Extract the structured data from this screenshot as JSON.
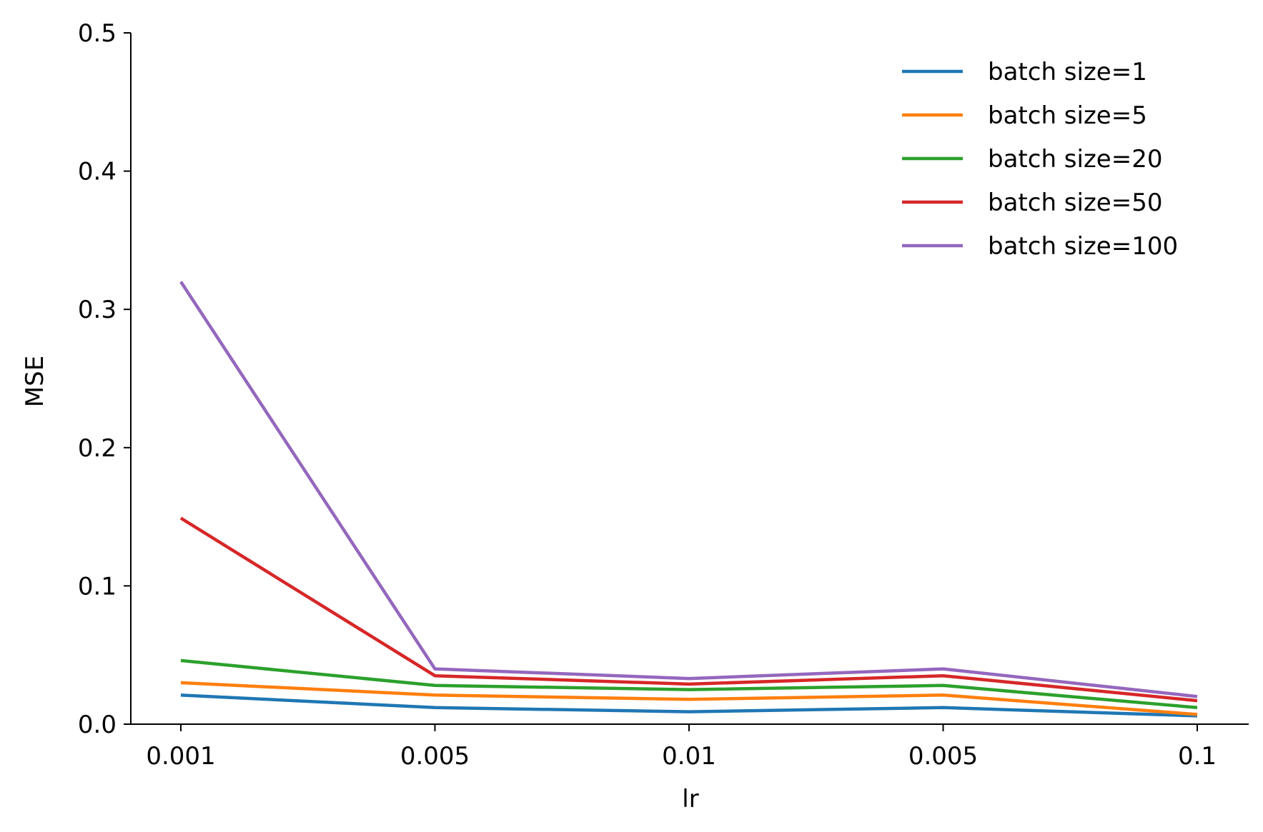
{
  "chart_data": {
    "type": "line",
    "title": "",
    "xlabel": "lr",
    "ylabel": "MSE",
    "categories": [
      "0.001",
      "0.005",
      "0.01",
      "0.005",
      "0.1"
    ],
    "ylim": [
      0,
      0.5
    ],
    "yticks": [
      "0.0",
      "0.1",
      "0.2",
      "0.3",
      "0.4",
      "0.5"
    ],
    "grid": false,
    "legend_position": "top-right",
    "series": [
      {
        "name": "batch size=1",
        "color": "#1f77b4",
        "values": [
          0.021,
          0.012,
          0.009,
          0.012,
          0.006
        ]
      },
      {
        "name": "batch size=5",
        "color": "#ff7f0e",
        "values": [
          0.03,
          0.021,
          0.018,
          0.021,
          0.007
        ]
      },
      {
        "name": "batch size=20",
        "color": "#2ca02c",
        "values": [
          0.046,
          0.028,
          0.025,
          0.028,
          0.012
        ]
      },
      {
        "name": "batch size=50",
        "color": "#d62728",
        "values": [
          0.149,
          0.035,
          0.029,
          0.035,
          0.017
        ]
      },
      {
        "name": "batch size=100",
        "color": "#9467bd",
        "values": [
          0.32,
          0.04,
          0.033,
          0.04,
          0.02
        ]
      }
    ]
  }
}
